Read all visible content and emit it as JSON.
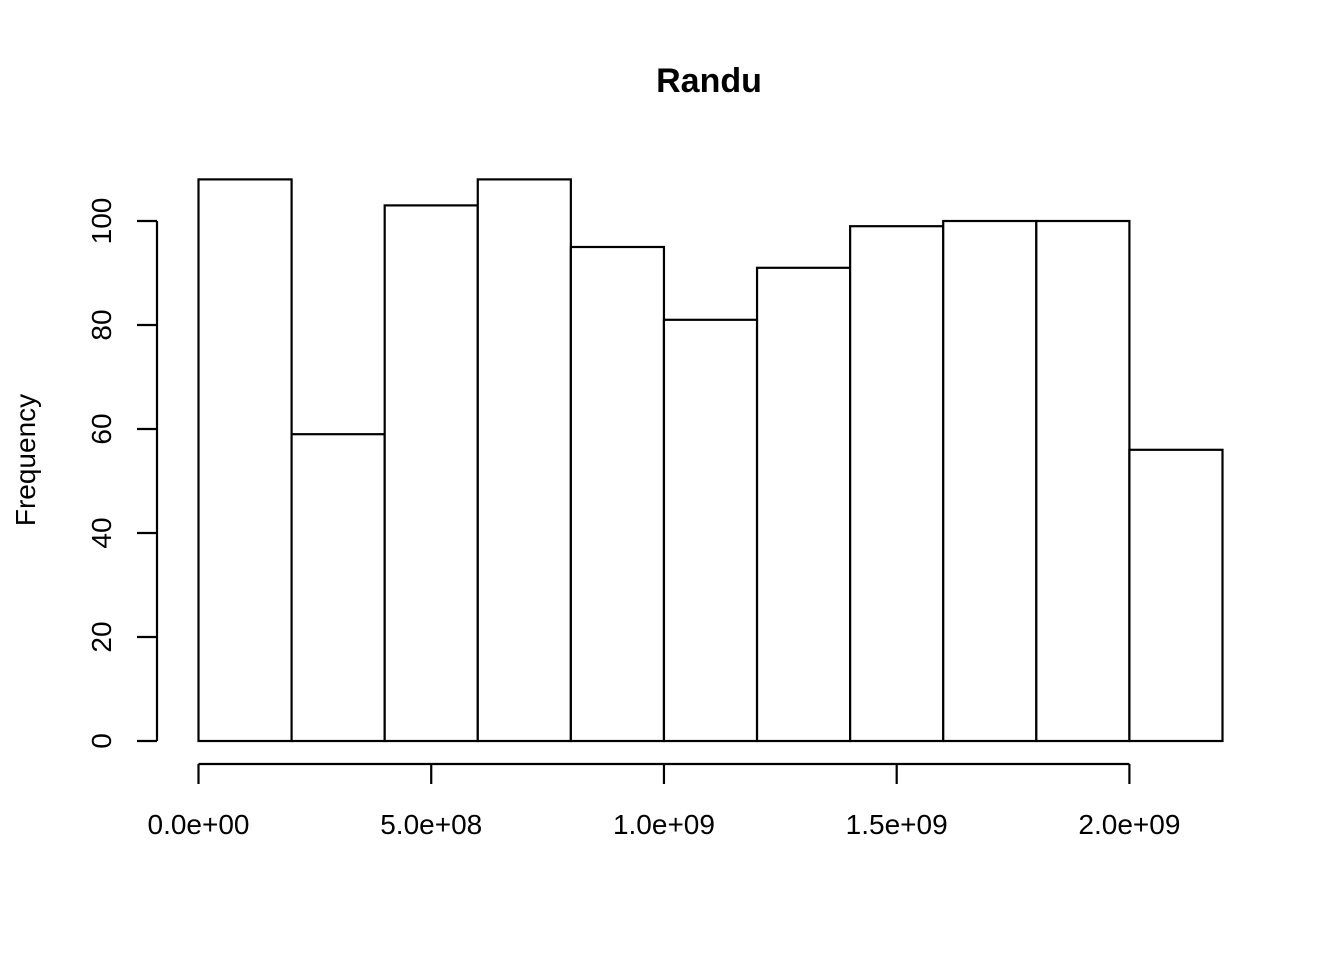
{
  "chart_data": {
    "type": "bar",
    "title": "Randu",
    "xlabel": "",
    "ylabel": "Frequency",
    "bins": [
      {
        "start": 0,
        "end": 200000000,
        "count": 108
      },
      {
        "start": 200000000,
        "end": 400000000,
        "count": 59
      },
      {
        "start": 400000000,
        "end": 600000000,
        "count": 103
      },
      {
        "start": 600000000,
        "end": 800000000,
        "count": 108
      },
      {
        "start": 800000000,
        "end": 1000000000,
        "count": 95
      },
      {
        "start": 1000000000,
        "end": 1200000000,
        "count": 81
      },
      {
        "start": 1200000000,
        "end": 1400000000,
        "count": 91
      },
      {
        "start": 1400000000,
        "end": 1600000000,
        "count": 99
      },
      {
        "start": 1600000000,
        "end": 1800000000,
        "count": 100
      },
      {
        "start": 1800000000,
        "end": 2000000000,
        "count": 100
      },
      {
        "start": 2000000000,
        "end": 2200000000,
        "count": 56
      }
    ],
    "xticks": [
      {
        "value": 0,
        "label": "0.0e+00"
      },
      {
        "value": 500000000,
        "label": "5.0e+08"
      },
      {
        "value": 1000000000,
        "label": "1.0e+09"
      },
      {
        "value": 1500000000,
        "label": "1.5e+09"
      },
      {
        "value": 2000000000,
        "label": "2.0e+09"
      }
    ],
    "yticks": [
      {
        "value": 0,
        "label": "0"
      },
      {
        "value": 20,
        "label": "20"
      },
      {
        "value": 40,
        "label": "40"
      },
      {
        "value": 60,
        "label": "60"
      },
      {
        "value": 80,
        "label": "80"
      },
      {
        "value": 100,
        "label": "100"
      }
    ],
    "xlim": [
      0,
      2200000000
    ],
    "ylim": [
      0,
      108
    ],
    "grid": false,
    "legend": "none"
  }
}
